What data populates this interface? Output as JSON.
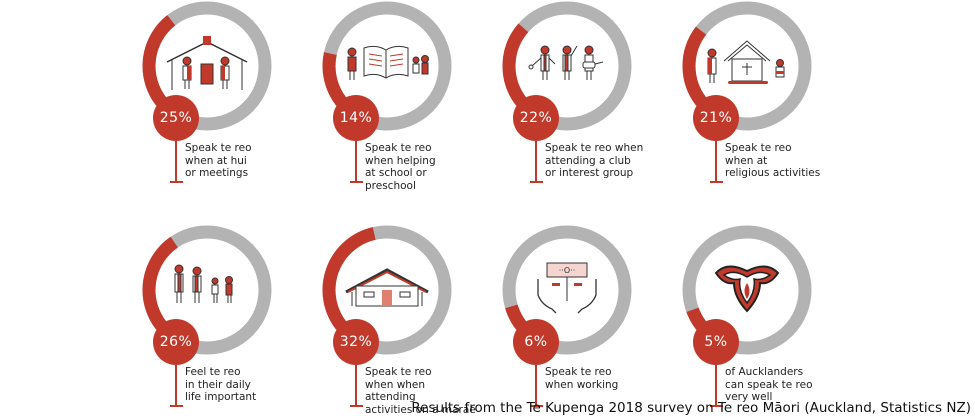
{
  "colors": {
    "accent": "#c0392b",
    "ring_bg": "#b3b3b3",
    "text": "#222222"
  },
  "footer": "Results from the Te Kupenga 2018 survey on Te reo Māori (Auckland, Statistics NZ)",
  "items": [
    {
      "pct_label": "25%",
      "label": "Speak te reo\nwhen at hui\nor meetings",
      "icon": "meeting-house-people-icon"
    },
    {
      "pct_label": "14%",
      "label": "Speak te reo\nwhen helping\nat school or preschool",
      "icon": "book-children-icon"
    },
    {
      "pct_label": "22%",
      "label": "Speak te reo when\nattending a club\nor interest group",
      "icon": "club-people-icon"
    },
    {
      "pct_label": "21%",
      "label": "Speak te reo\nwhen at\nreligious activities",
      "icon": "church-icon"
    },
    {
      "pct_label": "26%",
      "label": "Feel te reo\nin their daily\nlife important",
      "icon": "family-icon"
    },
    {
      "pct_label": "32%",
      "label": "Speak te reo\nwhen when attending\nactivities on a marae",
      "icon": "marae-icon"
    },
    {
      "pct_label": "6%",
      "label": "Speak te reo\nwhen working",
      "icon": "hands-sign-icon"
    },
    {
      "pct_label": "5%",
      "label": "of Aucklanders\ncan speak te reo\nvery well",
      "icon": "koru-mask-icon"
    }
  ],
  "chart_data": {
    "type": "pie",
    "title": "Results from the Te Kupenga 2018 survey on Te reo Māori (Auckland, Statistics NZ)",
    "categories": [
      "Speak te reo when at hui or meetings",
      "Speak te reo when helping at school or preschool",
      "Speak te reo when attending a club or interest group",
      "Speak te reo when at religious activities",
      "Feel te reo in their daily life important",
      "Speak te reo when when attending activities on a marae",
      "Speak te reo when working",
      "of Aucklanders can speak te reo very well"
    ],
    "values": [
      25,
      14,
      22,
      21,
      26,
      32,
      6,
      5
    ],
    "unit": "%",
    "layout": "8 donut rings in a 4x2 grid"
  }
}
